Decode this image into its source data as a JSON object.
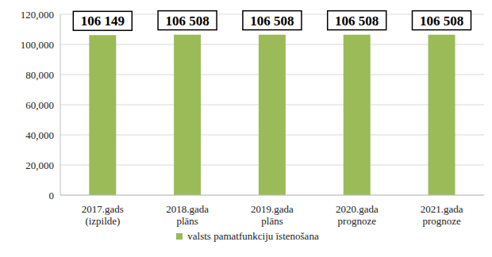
{
  "chart_data": {
    "type": "bar",
    "categories": [
      "2017.gads (izpilde)",
      "2018.gada plāns",
      "2019.gada plāns",
      "2020.gada prognoze",
      "2021.gada prognoze"
    ],
    "series": [
      {
        "name": "valsts pamatfunkciju īstenošana",
        "color": "#9bbb59",
        "values": [
          106149,
          106508,
          106508,
          106508,
          106508
        ],
        "value_labels": [
          "106 149",
          "106 508",
          "106 508",
          "106 508",
          "106 508"
        ]
      }
    ],
    "ylim": [
      0,
      120000
    ],
    "yticks": [
      0,
      {
        "value": 20000,
        "label": "20,000"
      },
      {
        "value": 40000,
        "label": "40,000"
      },
      {
        "value": 60000,
        "label": "60,000"
      },
      {
        "value": 80000,
        "label": "80,000"
      },
      {
        "value": 100000,
        "label": "100,000"
      },
      {
        "value": 120000,
        "label": "120,000"
      }
    ],
    "grid": true,
    "data_labels": true,
    "legend": "bottom"
  }
}
